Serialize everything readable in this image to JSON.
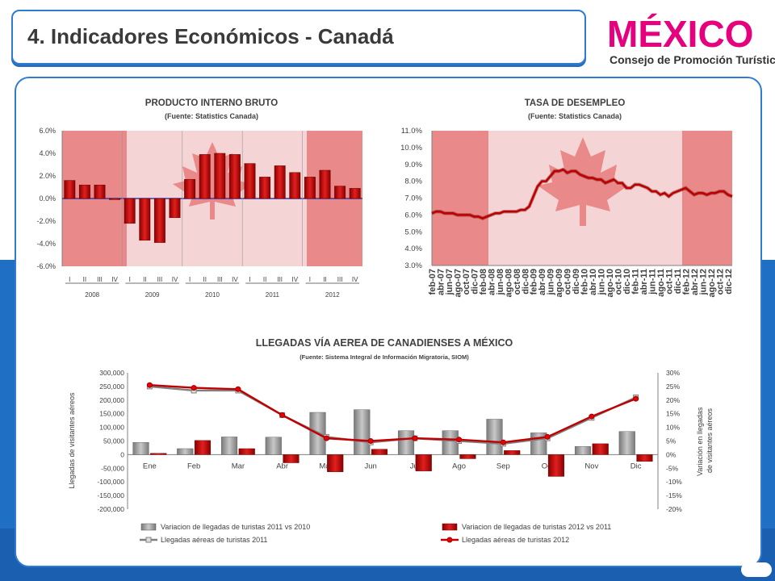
{
  "page": {
    "title": "4. Indicadores Económicos - Canadá"
  },
  "logo": {
    "wordmark": "MÉXICO",
    "subtitle": "Consejo de Promoción Turística"
  },
  "colors": {
    "accent_blue": "#2f7bd0",
    "bar_red": "#d81e1e",
    "bar_gray": "#a6a6a6",
    "line_red": "#c00000",
    "line_gray": "#7f7f7f"
  },
  "chart_data": [
    {
      "type": "bar",
      "title": "PRODUCTO INTERNO BRUTO",
      "subtitle": "(Fuente: Statistics Canada)",
      "yticks": [
        "6.0%",
        "4.0%",
        "2.0%",
        "0.0%",
        "-2.0%",
        "-4.0%",
        "-6.0%"
      ],
      "ylim": [
        -6,
        6
      ],
      "quarters": [
        "I",
        "II",
        "III",
        "IV",
        "I",
        "II",
        "III",
        "IV",
        "I",
        "II",
        "III",
        "IV",
        "I",
        "II",
        "III",
        "IV",
        "I",
        "II",
        "III",
        "IV"
      ],
      "years": [
        "2008",
        "2009",
        "2010",
        "2011",
        "2012"
      ],
      "values": [
        1.6,
        1.2,
        1.2,
        -0.1,
        -2.2,
        -3.7,
        -3.9,
        -1.7,
        1.7,
        3.9,
        4.0,
        3.9,
        3.1,
        1.9,
        2.9,
        2.3,
        1.9,
        2.5,
        1.1,
        0.9
      ]
    },
    {
      "type": "line",
      "title": "TASA DE DESEMPLEO",
      "subtitle": "(Fuente: Statistics Canada)",
      "yticks": [
        "11.0%",
        "10.0%",
        "9.0%",
        "8.0%",
        "7.0%",
        "6.0%",
        "5.0%",
        "4.0%",
        "3.0%"
      ],
      "ylim": [
        3,
        11
      ],
      "xlabels": [
        "feb-07",
        "abr-07",
        "jun-07",
        "ago-07",
        "oct-07",
        "dic-07",
        "feb-08",
        "abr-08",
        "jun-08",
        "ago-08",
        "oct-08",
        "dic-08",
        "feb-09",
        "abr-09",
        "jun-09",
        "ago-09",
        "oct-09",
        "dic-09",
        "feb-10",
        "abr-10",
        "jun-10",
        "ago-10",
        "oct-10",
        "dic-10",
        "feb-11",
        "abr-11",
        "jun-11",
        "ago-11",
        "oct-11",
        "dic-11",
        "feb-12",
        "abr-12",
        "jun-12",
        "ago-12",
        "oct-12",
        "dic-12"
      ],
      "x": [
        "ene-07",
        "feb-07",
        "mar-07",
        "abr-07",
        "may-07",
        "jun-07",
        "jul-07",
        "ago-07",
        "sep-07",
        "oct-07",
        "nov-07",
        "dic-07",
        "ene-08",
        "feb-08",
        "mar-08",
        "abr-08",
        "may-08",
        "jun-08",
        "jul-08",
        "ago-08",
        "sep-08",
        "oct-08",
        "nov-08",
        "dic-08",
        "ene-09",
        "feb-09",
        "mar-09",
        "abr-09",
        "may-09",
        "jun-09",
        "jul-09",
        "ago-09",
        "sep-09",
        "oct-09",
        "nov-09",
        "dic-09",
        "ene-10",
        "feb-10",
        "mar-10",
        "abr-10",
        "may-10",
        "jun-10",
        "jul-10",
        "ago-10",
        "sep-10",
        "oct-10",
        "nov-10",
        "dic-10",
        "ene-11",
        "feb-11",
        "mar-11",
        "abr-11",
        "may-11",
        "jun-11",
        "jul-11",
        "ago-11",
        "sep-11",
        "oct-11",
        "nov-11",
        "dic-11",
        "ene-12",
        "feb-12",
        "mar-12",
        "abr-12",
        "may-12",
        "jun-12",
        "jul-12",
        "ago-12",
        "sep-12",
        "oct-12",
        "nov-12",
        "dic-12"
      ],
      "values": [
        6.1,
        6.2,
        6.2,
        6.1,
        6.1,
        6.1,
        6.0,
        6.0,
        6.0,
        6.0,
        5.9,
        5.9,
        5.8,
        5.9,
        6.0,
        6.1,
        6.1,
        6.2,
        6.2,
        6.2,
        6.2,
        6.3,
        6.3,
        6.5,
        7.1,
        7.7,
        8.0,
        8.0,
        8.3,
        8.6,
        8.6,
        8.7,
        8.5,
        8.6,
        8.6,
        8.4,
        8.3,
        8.2,
        8.2,
        8.1,
        8.1,
        7.9,
        8.0,
        8.1,
        7.9,
        7.9,
        7.6,
        7.6,
        7.8,
        7.8,
        7.7,
        7.6,
        7.4,
        7.4,
        7.2,
        7.3,
        7.1,
        7.3,
        7.4,
        7.5,
        7.6,
        7.4,
        7.2,
        7.3,
        7.3,
        7.2,
        7.3,
        7.3,
        7.4,
        7.4,
        7.2,
        7.1
      ]
    },
    {
      "type": "bar",
      "title": "LLEGADAS VÍA AEREA DE CANADIENSES A MÉXICO",
      "subtitle": "(Fuente: Sistema Integral de Información Migratoria, SIOM)",
      "ylabel": "Llegadas de visitantes aéreos",
      "y2label": "Variación en llegadas de visitantes aéreos",
      "yticks": [
        "300,000",
        "250,000",
        "200,000",
        "150,000",
        "100,000",
        "50,000",
        "0",
        "-50,000",
        "-100,000",
        "-150,000",
        "-200,000"
      ],
      "y2ticks": [
        "30%",
        "25%",
        "20%",
        "15%",
        "10%",
        "5%",
        "0%",
        "-5%",
        "-10%",
        "-15%",
        "-20%"
      ],
      "ylim": [
        -200000,
        300000
      ],
      "y2lim": [
        -20,
        30
      ],
      "categories": [
        "Ene",
        "Feb",
        "Mar",
        "Abr",
        "May",
        "Jun",
        "Jul",
        "Ago",
        "Sep",
        "Oct",
        "Nov",
        "Dic"
      ],
      "series": [
        {
          "name": "Variacion de llegadas de turistas 2011 vs 2010",
          "axis": "left",
          "kind": "bar",
          "values": [
            45000,
            22000,
            65000,
            64000,
            155000,
            165000,
            88000,
            88000,
            130000,
            80000,
            30000,
            85000
          ]
        },
        {
          "name": "Variacion de llegadas de turistas 2012 vs 2011",
          "axis": "left",
          "kind": "bar",
          "values": [
            5000,
            52000,
            22000,
            -30000,
            -63000,
            20000,
            -60000,
            -15000,
            15000,
            -80000,
            40000,
            -25000
          ]
        },
        {
          "name": "Llegadas aéreas de turistas 2011",
          "axis": "right",
          "kind": "line",
          "values": [
            25.0,
            23.5,
            23.5,
            14.5,
            6.5,
            4.5,
            6.0,
            5.0,
            4.0,
            6.0,
            13.5,
            21.0
          ]
        },
        {
          "name": "Llegadas aéreas de turistas 2012",
          "axis": "right",
          "kind": "line",
          "values": [
            25.5,
            24.5,
            24.0,
            14.5,
            6.0,
            5.0,
            6.0,
            5.5,
            4.5,
            6.5,
            14.0,
            20.5
          ]
        }
      ]
    }
  ]
}
